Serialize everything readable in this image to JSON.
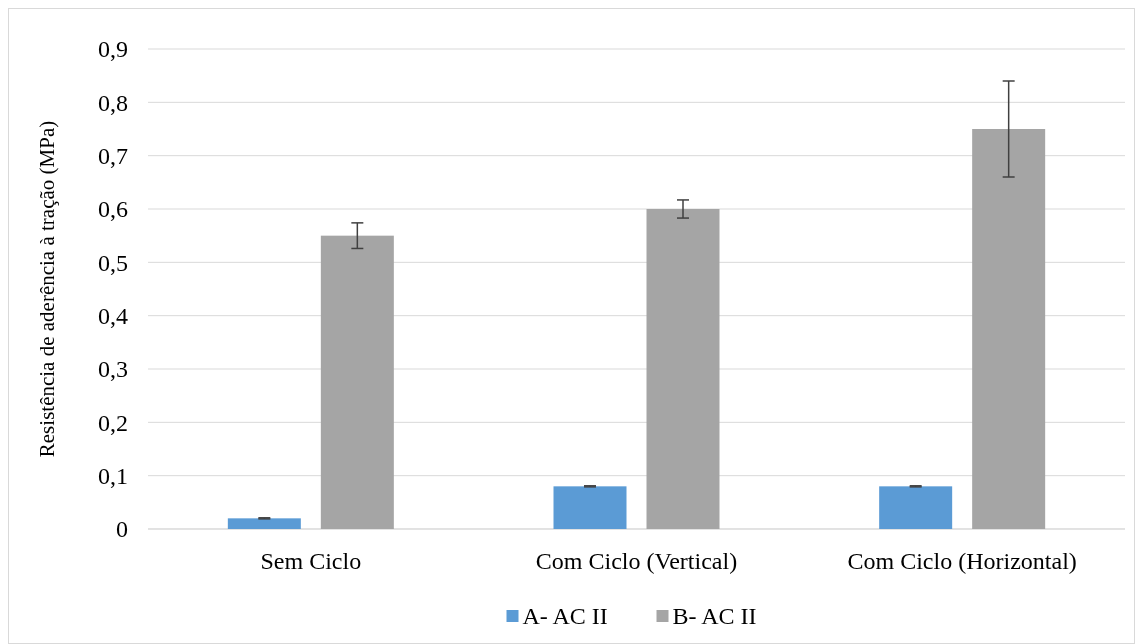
{
  "chart_data": {
    "type": "bar",
    "ylabel": "Resistência de aderência à tração (MPa)",
    "categories": [
      "Sem  Ciclo",
      "Com Ciclo (Vertical)",
      "Com Ciclo (Horizontal)"
    ],
    "series": [
      {
        "name": "A- AC II",
        "color": "#5b9bd5",
        "values": [
          0.02,
          0.08,
          0.08
        ],
        "errors": [
          0.001,
          0.001,
          0.001
        ]
      },
      {
        "name": "B- AC II",
        "color": "#a5a5a5",
        "values": [
          0.55,
          0.6,
          0.75
        ],
        "errors": [
          0.024,
          0.017,
          0.09
        ]
      }
    ],
    "ylim": [
      0,
      0.9
    ],
    "yticks": [
      {
        "value": 0,
        "label": "0"
      },
      {
        "value": 0.1,
        "label": "0,1"
      },
      {
        "value": 0.2,
        "label": "0,2"
      },
      {
        "value": 0.3,
        "label": "0,3"
      },
      {
        "value": 0.4,
        "label": "0,4"
      },
      {
        "value": 0.5,
        "label": "0,5"
      },
      {
        "value": 0.6,
        "label": "0,6"
      },
      {
        "value": 0.7,
        "label": "0,7"
      },
      {
        "value": 0.8,
        "label": "0,8"
      },
      {
        "value": 0.9,
        "label": "0,9"
      }
    ],
    "grid": "y",
    "legend": "bottom"
  }
}
